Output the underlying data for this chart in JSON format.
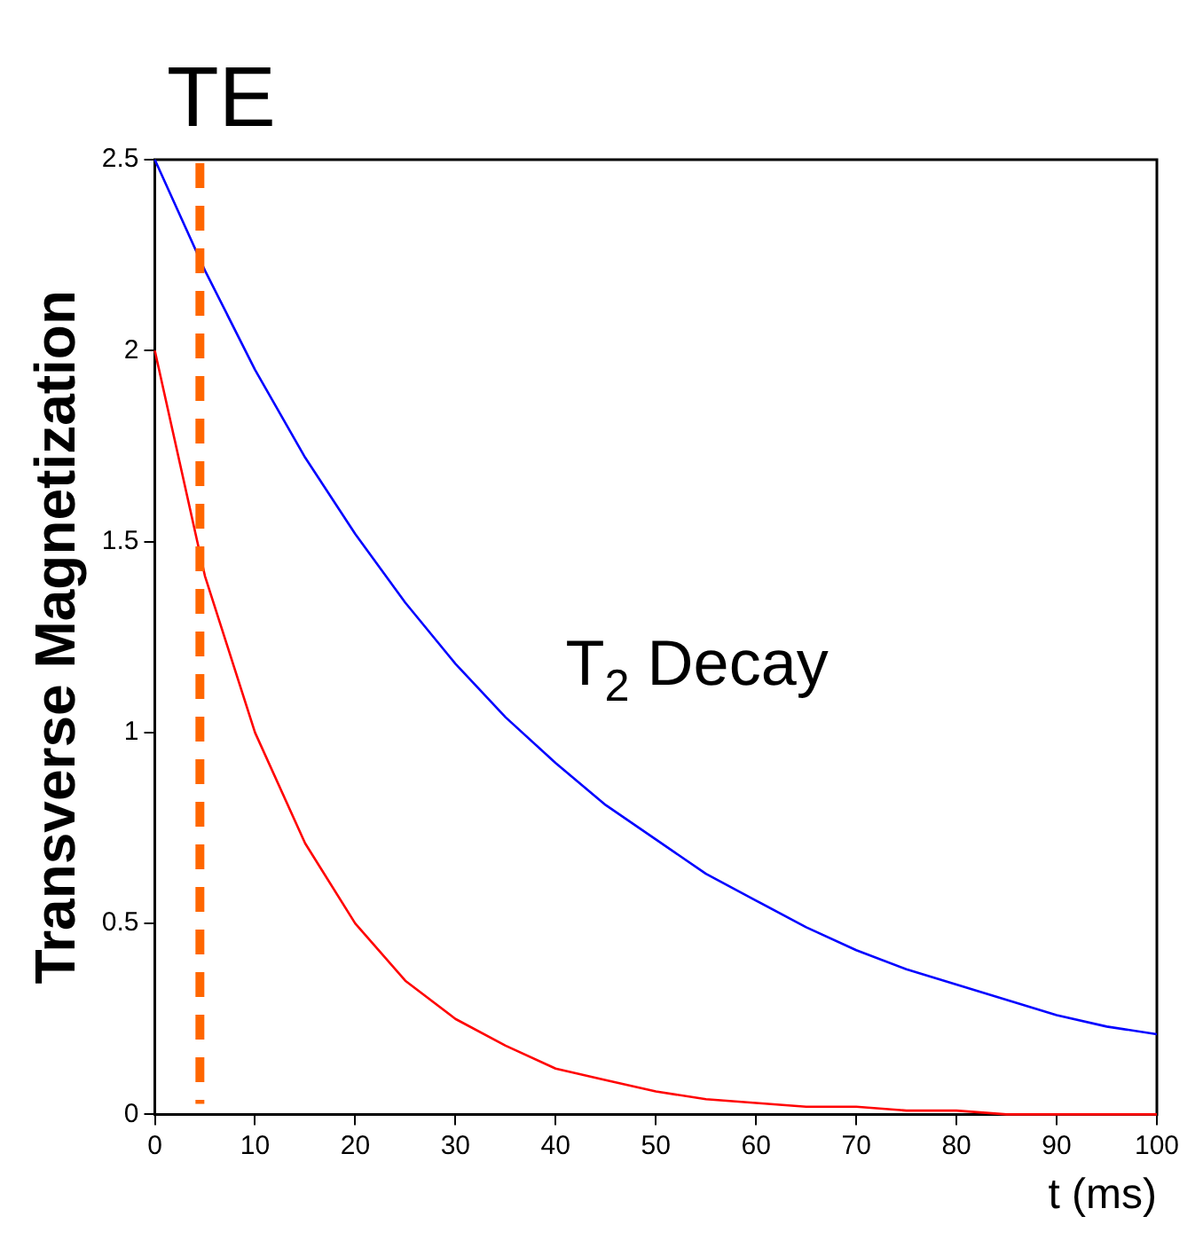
{
  "chart_data": {
    "type": "line",
    "xlabel": "t (ms)",
    "ylabel": "Transverse Magnetization",
    "x": [
      0,
      5,
      10,
      15,
      20,
      25,
      30,
      35,
      40,
      45,
      50,
      55,
      60,
      65,
      70,
      75,
      80,
      85,
      90,
      95,
      100
    ],
    "series": [
      {
        "color": "#0000ff",
        "values": [
          2.5,
          2.21,
          1.95,
          1.72,
          1.52,
          1.34,
          1.18,
          1.04,
          0.92,
          0.81,
          0.72,
          0.63,
          0.56,
          0.49,
          0.43,
          0.38,
          0.34,
          0.3,
          0.26,
          0.23,
          0.21
        ]
      },
      {
        "color": "#ff0000",
        "values": [
          2,
          1.41,
          1,
          0.71,
          0.5,
          0.35,
          0.25,
          0.18,
          0.12,
          0.09,
          0.06,
          0.04,
          0.03,
          0.02,
          0.02,
          0.01,
          0.01,
          0,
          0,
          0,
          0
        ]
      }
    ],
    "xlim": [
      0,
      100
    ],
    "xticks": [
      0,
      10,
      20,
      30,
      40,
      50,
      60,
      70,
      80,
      90,
      100
    ],
    "ylim": [
      0,
      2.5
    ],
    "yticks": [
      0,
      0.5,
      1,
      1.5,
      2,
      2.5
    ],
    "ref_lines": [
      {
        "axis": "x",
        "value": 4.5,
        "label": "TE",
        "color": "#ff6600",
        "line_style": "dashed"
      }
    ],
    "annotations": [
      "T$_{2}$ Decay"
    ],
    "grid": false,
    "legend": false,
    "marker": "none",
    "line_style": "solid"
  }
}
